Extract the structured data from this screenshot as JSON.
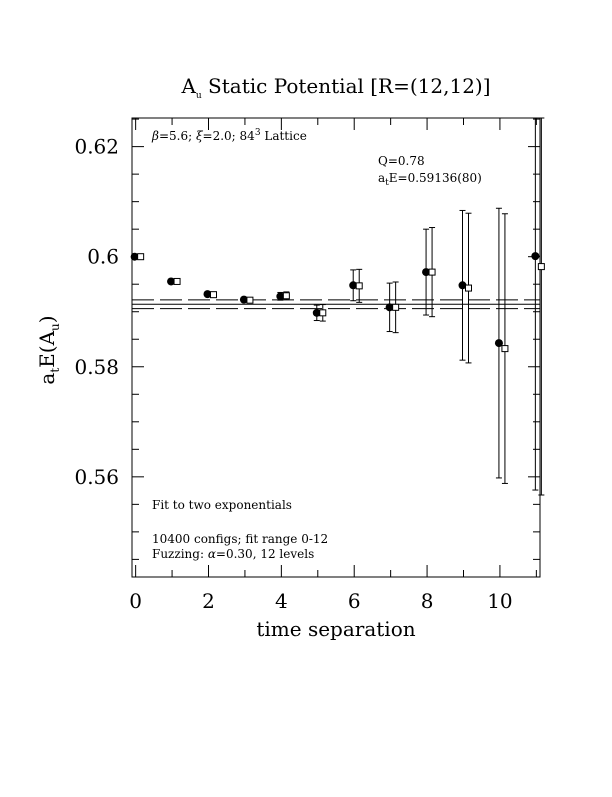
{
  "chart_data": {
    "type": "scatter",
    "title": {
      "main": "A",
      "main_sub": "u",
      "rest": " Static Potential [R=(12,12)]"
    },
    "xlabel": "time separation",
    "ylabel": {
      "a": "a",
      "a_sub": "t",
      "mid": "E(A",
      "mid_sub": "u",
      "end": ")"
    },
    "xlim": [
      -0.1,
      11.1
    ],
    "ylim": [
      0.5418,
      0.6252
    ],
    "x_ticks": [
      0,
      2,
      4,
      6,
      8,
      10
    ],
    "x_tick_labels": [
      "0",
      "2",
      "4",
      "6",
      "8",
      "10"
    ],
    "y_ticks": [
      0.56,
      0.58,
      0.6,
      0.62
    ],
    "y_tick_labels": [
      "0.56",
      "0.58",
      "0.6",
      "0.62"
    ],
    "annotations": {
      "lattice": {
        "beta": "β",
        "text1": "=5.6; ",
        "xi": "ξ",
        "text2": "=2.0; 84",
        "sup": "3",
        "text3": " Lattice"
      },
      "q": "Q=0.78",
      "fit": {
        "a": "a",
        "a_sub": "t",
        "rest": "E=0.59136(80)"
      },
      "fit_type": "Fit to two exponentials",
      "configs": "10400 configs; fit range 0-12",
      "fuzzing": {
        "pre": "Fuzzing: ",
        "alpha": "α",
        "post": "=0.30, 12 levels"
      }
    },
    "fit_value": 0.59136,
    "fit_error": 0.0008,
    "series": [
      {
        "marker": "filled-circle",
        "points": [
          {
            "x": 0,
            "y": 0.6,
            "err": 0.0001
          },
          {
            "x": 1,
            "y": 0.5955,
            "err": 0.0004
          },
          {
            "x": 2,
            "y": 0.5932,
            "err": 0.0004
          },
          {
            "x": 3,
            "y": 0.5922,
            "err": 0.0004
          },
          {
            "x": 4,
            "y": 0.5928,
            "err": 0.0007
          },
          {
            "x": 5,
            "y": 0.5898,
            "err": 0.0014
          },
          {
            "x": 6,
            "y": 0.5948,
            "err": 0.0028
          },
          {
            "x": 7,
            "y": 0.5908,
            "err": 0.0044
          },
          {
            "x": 8,
            "y": 0.5972,
            "err": 0.0078
          },
          {
            "x": 9,
            "y": 0.5948,
            "err": 0.0136
          },
          {
            "x": 10,
            "y": 0.5843,
            "err": 0.0245
          },
          {
            "x": 11,
            "y": 0.6001,
            "err": 0.0425
          }
        ]
      },
      {
        "marker": "open-square",
        "points": [
          {
            "x": 0,
            "y": 0.6,
            "err": 0.0001
          },
          {
            "x": 1,
            "y": 0.5955,
            "err": 0.0004
          },
          {
            "x": 2,
            "y": 0.5931,
            "err": 0.0004
          },
          {
            "x": 3,
            "y": 0.5921,
            "err": 0.0004
          },
          {
            "x": 4,
            "y": 0.5929,
            "err": 0.0007
          },
          {
            "x": 5,
            "y": 0.5898,
            "err": 0.0015
          },
          {
            "x": 6,
            "y": 0.5947,
            "err": 0.003
          },
          {
            "x": 7,
            "y": 0.5908,
            "err": 0.0046
          },
          {
            "x": 8,
            "y": 0.5972,
            "err": 0.0081
          },
          {
            "x": 9,
            "y": 0.5943,
            "err": 0.0136
          },
          {
            "x": 10,
            "y": 0.5833,
            "err": 0.0245
          },
          {
            "x": 11,
            "y": 0.5982,
            "err": 0.0415
          }
        ]
      }
    ],
    "colors": {
      "ink": "#000000",
      "background": "#ffffff"
    }
  }
}
